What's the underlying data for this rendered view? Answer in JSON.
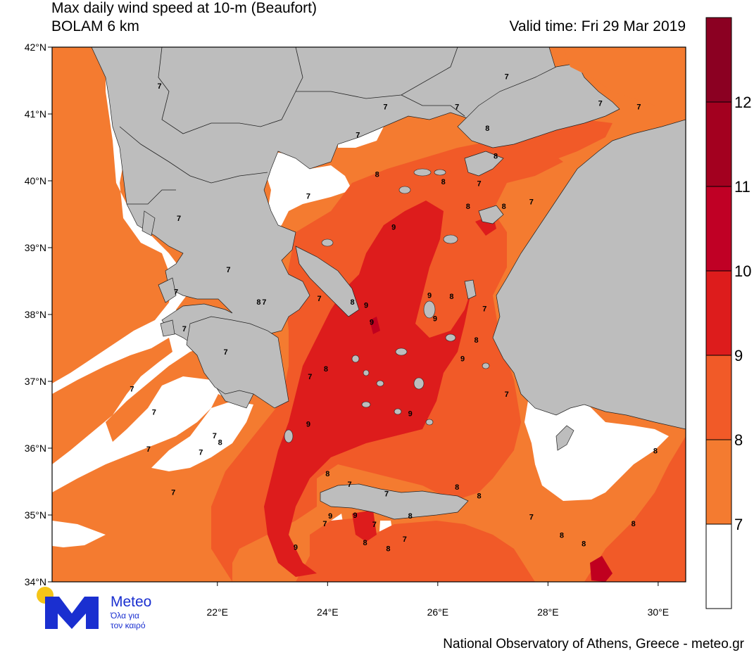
{
  "header": {
    "title_line1": "Max daily wind speed at 10-m (Beaufort)",
    "title_line2": "BOLAM 6 km",
    "valid_time": "Valid time: Fri 29 Mar 2019"
  },
  "footer": {
    "credit": "National Observatory of Athens, Greece - meteo.gr"
  },
  "logo": {
    "brand": "Meteo",
    "tagline1": "Όλα για",
    "tagline2": "τον καιρό",
    "sun_color": "#f5c518",
    "brand_color": "#1a2fd0"
  },
  "axes": {
    "lat_labels": [
      "42°N",
      "41°N",
      "40°N",
      "39°N",
      "38°N",
      "37°N",
      "36°N",
      "35°N",
      "34°N"
    ],
    "lon_labels": [
      "22°E",
      "24°E",
      "26°E",
      "28°E",
      "30°E"
    ]
  },
  "colorbar": {
    "colors": [
      "#ffffff",
      "#f47b30",
      "#f15a28",
      "#dd1c1c",
      "#c00025",
      "#a3001f",
      "#8b0022"
    ],
    "labels": [
      "7",
      "8",
      "9",
      "10",
      "11",
      "12"
    ]
  },
  "map": {
    "land_color": "#bdbdbd",
    "sea_colors": {
      "bf7": "#f47b30",
      "bf8": "#f15a28",
      "bf9": "#dd1c1c",
      "bf10": "#c0001f",
      "calm": "#ffffff"
    },
    "contour_labels": [
      {
        "t": "7",
        "lon": 20.95,
        "lat": 41.38
      },
      {
        "t": "7",
        "lon": 21.3,
        "lat": 39.4
      },
      {
        "t": "7",
        "lon": 21.25,
        "lat": 38.3
      },
      {
        "t": "7",
        "lon": 21.4,
        "lat": 37.75
      },
      {
        "t": "7",
        "lon": 20.45,
        "lat": 36.85
      },
      {
        "t": "7",
        "lon": 20.85,
        "lat": 36.5
      },
      {
        "t": "7",
        "lon": 22.15,
        "lat": 37.4
      },
      {
        "t": "7",
        "lon": 21.95,
        "lat": 36.15
      },
      {
        "t": "7",
        "lon": 21.7,
        "lat": 35.9
      },
      {
        "t": "7",
        "lon": 20.75,
        "lat": 35.95
      },
      {
        "t": "7",
        "lon": 21.2,
        "lat": 35.3
      },
      {
        "t": "8",
        "lon": 22.75,
        "lat": 38.15
      },
      {
        "t": "7",
        "lon": 22.85,
        "lat": 38.15
      },
      {
        "t": "7",
        "lon": 22.2,
        "lat": 38.63
      },
      {
        "t": "8",
        "lon": 22.05,
        "lat": 36.05
      },
      {
        "t": "7",
        "lon": 23.65,
        "lat": 39.73
      },
      {
        "t": "7",
        "lon": 23.85,
        "lat": 38.2
      },
      {
        "t": "7",
        "lon": 23.68,
        "lat": 37.03
      },
      {
        "t": "8",
        "lon": 23.97,
        "lat": 37.15
      },
      {
        "t": "9",
        "lon": 23.65,
        "lat": 36.32
      },
      {
        "t": "9",
        "lon": 23.42,
        "lat": 34.48
      },
      {
        "t": "8",
        "lon": 24.45,
        "lat": 38.15
      },
      {
        "t": "9",
        "lon": 24.7,
        "lat": 38.1
      },
      {
        "t": "9",
        "lon": 24.8,
        "lat": 37.85
      },
      {
        "t": "9",
        "lon": 25.2,
        "lat": 39.27
      },
      {
        "t": "7",
        "lon": 24.55,
        "lat": 40.65
      },
      {
        "t": "8",
        "lon": 24.9,
        "lat": 40.06
      },
      {
        "t": "7",
        "lon": 25.05,
        "lat": 41.07
      },
      {
        "t": "9",
        "lon": 25.5,
        "lat": 36.48
      },
      {
        "t": "9",
        "lon": 25.85,
        "lat": 38.25
      },
      {
        "t": "9",
        "lon": 25.95,
        "lat": 37.9
      },
      {
        "t": "8",
        "lon": 26.25,
        "lat": 38.23
      },
      {
        "t": "8",
        "lon": 26.1,
        "lat": 39.95
      },
      {
        "t": "7",
        "lon": 26.35,
        "lat": 41.07
      },
      {
        "t": "8",
        "lon": 26.9,
        "lat": 40.75
      },
      {
        "t": "8",
        "lon": 27.05,
        "lat": 40.33
      },
      {
        "t": "7",
        "lon": 26.75,
        "lat": 39.92
      },
      {
        "t": "8",
        "lon": 26.55,
        "lat": 39.58
      },
      {
        "t": "8",
        "lon": 27.2,
        "lat": 39.58
      },
      {
        "t": "7",
        "lon": 27.7,
        "lat": 39.65
      },
      {
        "t": "7",
        "lon": 27.25,
        "lat": 41.52
      },
      {
        "t": "7",
        "lon": 28.95,
        "lat": 41.12
      },
      {
        "t": "7",
        "lon": 29.65,
        "lat": 41.07
      },
      {
        "t": "9",
        "lon": 26.45,
        "lat": 37.3
      },
      {
        "t": "8",
        "lon": 26.7,
        "lat": 37.58
      },
      {
        "t": "7",
        "lon": 26.85,
        "lat": 38.05
      },
      {
        "t": "7",
        "lon": 27.25,
        "lat": 36.77
      },
      {
        "t": "8",
        "lon": 26.35,
        "lat": 35.38
      },
      {
        "t": "8",
        "lon": 26.75,
        "lat": 35.25
      },
      {
        "t": "8",
        "lon": 25.5,
        "lat": 34.95
      },
      {
        "t": "7",
        "lon": 25.07,
        "lat": 35.28
      },
      {
        "t": "7",
        "lon": 24.4,
        "lat": 35.42
      },
      {
        "t": "8",
        "lon": 24.0,
        "lat": 35.58
      },
      {
        "t": "9",
        "lon": 24.05,
        "lat": 34.95
      },
      {
        "t": "9",
        "lon": 24.5,
        "lat": 34.96
      },
      {
        "t": "7",
        "lon": 24.85,
        "lat": 34.82
      },
      {
        "t": "7",
        "lon": 23.95,
        "lat": 34.83
      },
      {
        "t": "8",
        "lon": 24.68,
        "lat": 34.55
      },
      {
        "t": "8",
        "lon": 25.1,
        "lat": 34.46
      },
      {
        "t": "7",
        "lon": 25.4,
        "lat": 34.6
      },
      {
        "t": "7",
        "lon": 27.7,
        "lat": 34.93
      },
      {
        "t": "8",
        "lon": 28.25,
        "lat": 34.66
      },
      {
        "t": "8",
        "lon": 28.65,
        "lat": 34.53
      },
      {
        "t": "8",
        "lon": 29.55,
        "lat": 34.83
      },
      {
        "t": "8",
        "lon": 29.95,
        "lat": 35.92
      }
    ]
  }
}
